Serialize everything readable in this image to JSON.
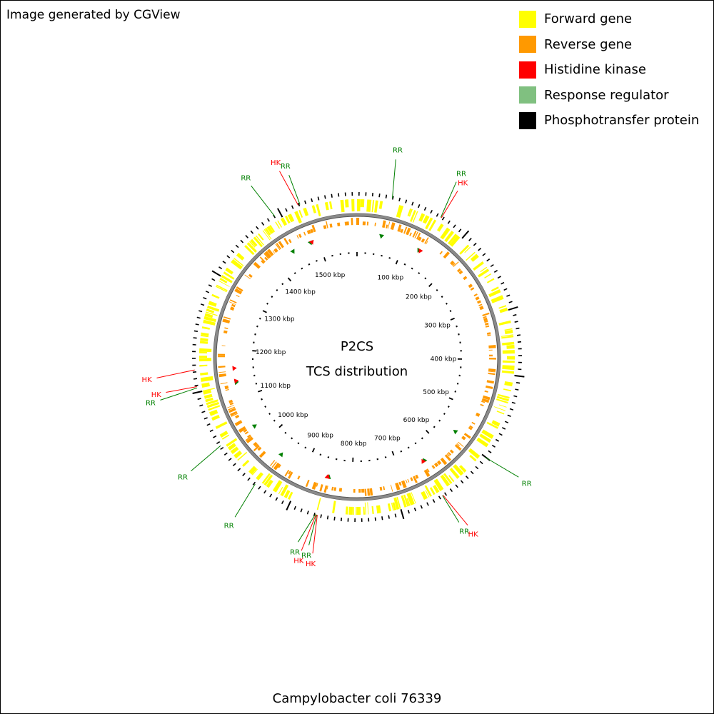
{
  "credit": "Image generated by CGView",
  "legend": [
    {
      "label": "Forward gene",
      "color": "#ffff00"
    },
    {
      "label": "Reverse gene",
      "color": "#ff9900"
    },
    {
      "label": "Histidine kinase",
      "color": "#ff0000"
    },
    {
      "label": "Response regulator",
      "color": "#80c080"
    },
    {
      "label": "Phosphotransfer protein",
      "color": "#000000"
    }
  ],
  "center": {
    "title": "P2CS",
    "subtitle": "TCS distribution"
  },
  "genome_name": "Campylobacter coli 76339",
  "colors": {
    "forward_gene": "#ffff00",
    "reverse_gene": "#ff9900",
    "histidine_kinase": "#ff0000",
    "response_regulator_marker": "#008000",
    "response_regulator_callout": "#008000",
    "backbone": "#808080",
    "phosphotransfer": "#000000"
  },
  "genome_length_kbp": 1580,
  "ruler_labels": [
    {
      "kbp": 100,
      "label": "100 kbp"
    },
    {
      "kbp": 200,
      "label": "200 kbp"
    },
    {
      "kbp": 300,
      "label": "300 kbp"
    },
    {
      "kbp": 400,
      "label": "400 kbp"
    },
    {
      "kbp": 500,
      "label": "500 kbp"
    },
    {
      "kbp": 600,
      "label": "600 kbp"
    },
    {
      "kbp": 700,
      "label": "700 kbp"
    },
    {
      "kbp": 800,
      "label": "800 kbp"
    },
    {
      "kbp": 900,
      "label": "900 kbp"
    },
    {
      "kbp": 1000,
      "label": "1000 kbp"
    },
    {
      "kbp": 1100,
      "label": "1100 kbp"
    },
    {
      "kbp": 1200,
      "label": "1200 kbp"
    },
    {
      "kbp": 1300,
      "label": "1300 kbp"
    },
    {
      "kbp": 1400,
      "label": "1400 kbp"
    },
    {
      "kbp": 1500,
      "label": "1500 kbp"
    }
  ],
  "callouts": [
    {
      "kbp": 55,
      "label": "RR",
      "type": "RR"
    },
    {
      "kbp": 136,
      "label": "RR",
      "type": "RR"
    },
    {
      "kbp": 137,
      "label": "HK",
      "type": "HK"
    },
    {
      "kbp": 562,
      "label": "RR",
      "type": "RR"
    },
    {
      "kbp": 650,
      "label": "HK",
      "type": "HK"
    },
    {
      "kbp": 651,
      "label": "RR",
      "type": "RR"
    },
    {
      "kbp": 852,
      "label": "HK",
      "type": "HK"
    },
    {
      "kbp": 853,
      "label": "RR",
      "type": "RR"
    },
    {
      "kbp": 854,
      "label": "HK",
      "type": "HK"
    },
    {
      "kbp": 855,
      "label": "RR",
      "type": "RR"
    },
    {
      "kbp": 960,
      "label": "RR",
      "type": "RR"
    },
    {
      "kbp": 1040,
      "label": "RR",
      "type": "RR"
    },
    {
      "kbp": 1137,
      "label": "RR",
      "type": "RR"
    },
    {
      "kbp": 1139,
      "label": "HK",
      "type": "HK"
    },
    {
      "kbp": 1165,
      "label": "HK",
      "type": "HK"
    },
    {
      "kbp": 1447,
      "label": "RR",
      "type": "RR"
    },
    {
      "kbp": 1487,
      "label": "HK",
      "type": "HK"
    },
    {
      "kbp": 1490,
      "label": "RR",
      "type": "RR"
    }
  ],
  "markers": [
    {
      "kbp": 50,
      "type": "RR"
    },
    {
      "kbp": 132,
      "type": "RR"
    },
    {
      "kbp": 135,
      "type": "HK"
    },
    {
      "kbp": 558,
      "type": "RR"
    },
    {
      "kbp": 645,
      "type": "RR"
    },
    {
      "kbp": 648,
      "type": "HK"
    },
    {
      "kbp": 848,
      "type": "RR"
    },
    {
      "kbp": 850,
      "type": "HK"
    },
    {
      "kbp": 851,
      "type": "HK"
    },
    {
      "kbp": 956,
      "type": "RR"
    },
    {
      "kbp": 1036,
      "type": "RR"
    },
    {
      "kbp": 1133,
      "type": "RR"
    },
    {
      "kbp": 1136,
      "type": "HK"
    },
    {
      "kbp": 1162,
      "type": "HK"
    },
    {
      "kbp": 1443,
      "type": "RR"
    },
    {
      "kbp": 1483,
      "type": "RR"
    },
    {
      "kbp": 1486,
      "type": "HK"
    }
  ],
  "phosphotransfer_kbp": [
    40,
    180,
    320,
    420,
    560,
    720,
    900,
    1130,
    1320,
    1460
  ]
}
